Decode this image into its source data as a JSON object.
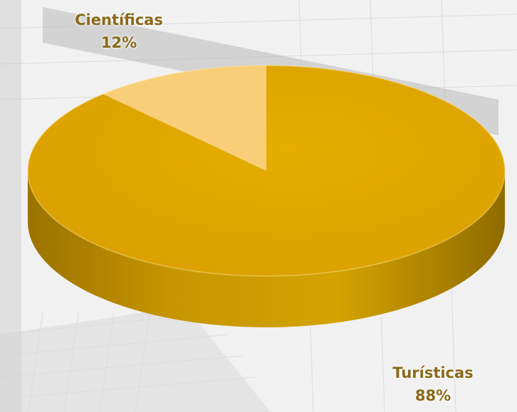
{
  "colors": {
    "turisticas": "#e0a800",
    "turisticas_side": "#b98a00",
    "cientificas": "#f8cf78",
    "label": "#8a6a1a"
  },
  "chart_data": {
    "type": "pie",
    "style": "3d",
    "title": "",
    "slices": [
      {
        "label": "Turísticas",
        "value": 88,
        "percent_label": "88%"
      },
      {
        "label": "Científicas",
        "value": 12,
        "percent_label": "12%"
      }
    ],
    "legend": "none",
    "data_labels": "outside"
  }
}
